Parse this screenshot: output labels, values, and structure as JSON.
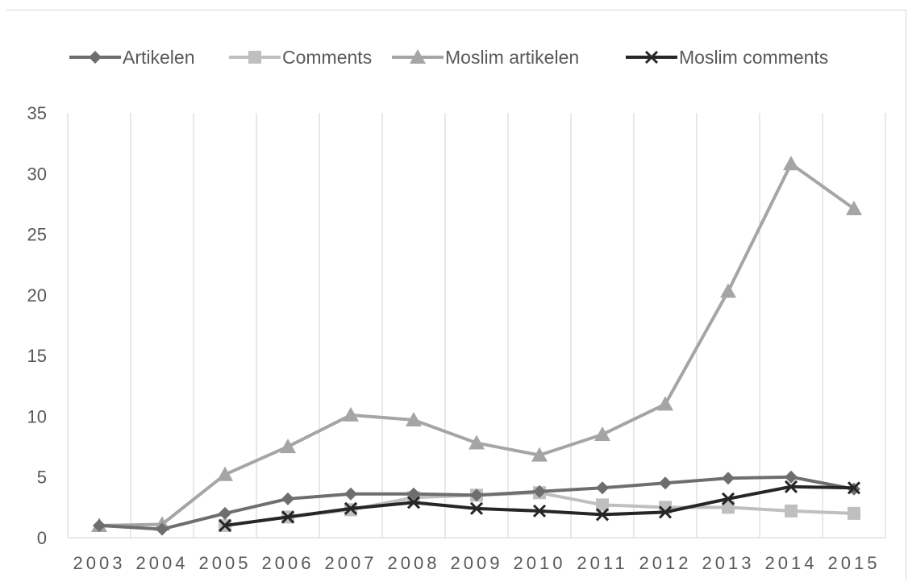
{
  "chart_data": {
    "type": "line",
    "title": "",
    "xlabel": "",
    "ylabel": "",
    "categories": [
      "2003",
      "2004",
      "2005",
      "2006",
      "2007",
      "2008",
      "2009",
      "2010",
      "2011",
      "2012",
      "2013",
      "2014",
      "2015"
    ],
    "ylim": [
      0,
      35
    ],
    "yticks": [
      "0",
      "5",
      "10",
      "15",
      "20",
      "25",
      "30",
      "35"
    ],
    "grid": "vertical",
    "legend_position": "top",
    "series": [
      {
        "name": "Artikelen",
        "marker": "diamond",
        "color": "#6e6e6e",
        "values": [
          1.0,
          0.7,
          2.0,
          3.2,
          3.6,
          3.6,
          3.5,
          3.8,
          4.1,
          4.5,
          4.9,
          5.0,
          4.0
        ]
      },
      {
        "name": "Comments",
        "marker": "square",
        "color": "#bfbfbf",
        "values": [
          null,
          null,
          1.0,
          1.7,
          2.3,
          3.3,
          3.5,
          3.7,
          2.7,
          2.5,
          2.5,
          2.2,
          2.0
        ]
      },
      {
        "name": "Moslim artikelen",
        "marker": "triangle",
        "color": "#a5a5a5",
        "values": [
          1.0,
          1.1,
          5.2,
          7.5,
          10.1,
          9.7,
          7.8,
          6.8,
          8.5,
          11.0,
          20.3,
          30.8,
          27.1
        ]
      },
      {
        "name": "Moslim comments",
        "marker": "x",
        "color": "#262626",
        "values": [
          null,
          null,
          1.0,
          1.7,
          2.4,
          2.9,
          2.4,
          2.2,
          1.9,
          2.1,
          3.2,
          4.2,
          4.1
        ]
      }
    ]
  }
}
